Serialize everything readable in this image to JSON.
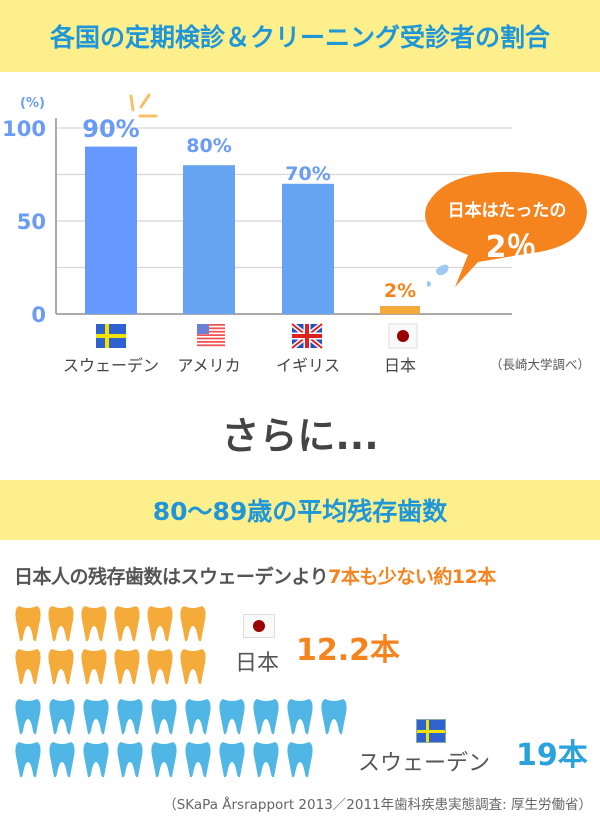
{
  "header": {
    "title": "各国の定期検診＆クリーニング受診者の割合"
  },
  "chart_data": {
    "type": "bar",
    "title": "各国の定期検診＆クリーニング受診者の割合",
    "ylabel": "(%)",
    "ylim": [
      0,
      100
    ],
    "yticks": [
      0,
      50,
      100
    ],
    "grid": true,
    "categories": [
      "スウェーデン",
      "アメリカ",
      "イギリス",
      "日本"
    ],
    "flags": [
      "sweden-flag",
      "usa-flag",
      "uk-flag",
      "japan-flag"
    ],
    "values": [
      90,
      80,
      70,
      2
    ],
    "value_labels": [
      "90%",
      "80%",
      "70%",
      "2%"
    ],
    "colors": [
      "#6699ff",
      "#66a3f0",
      "#66a3f0",
      "#f5a93a"
    ],
    "source": "（長崎大学調べ）",
    "callout": {
      "line1": "日本はたったの",
      "line2": "2％"
    }
  },
  "sarani": "さらに...",
  "section2": {
    "title": "80〜89歳の平均残存歯数"
  },
  "comparison": {
    "prefix": "日本人の残存歯数はスウェーデンより",
    "highlight": "7本も少ない約12本"
  },
  "teeth": [
    {
      "country": "日本",
      "value": "12.2本",
      "count": 12,
      "per_row": 6,
      "color": "#f5ab3a",
      "value_color": "#f5841f"
    },
    {
      "country": "スウェーデン",
      "value": "19本",
      "count": 19,
      "per_row": 10,
      "color": "#4fb6e6",
      "value_color": "#2aa2dc"
    }
  ],
  "footer_source": "（SKaPa Årsrapport 2013／2011年歯科疾患実態調査: 厚生労働省）"
}
